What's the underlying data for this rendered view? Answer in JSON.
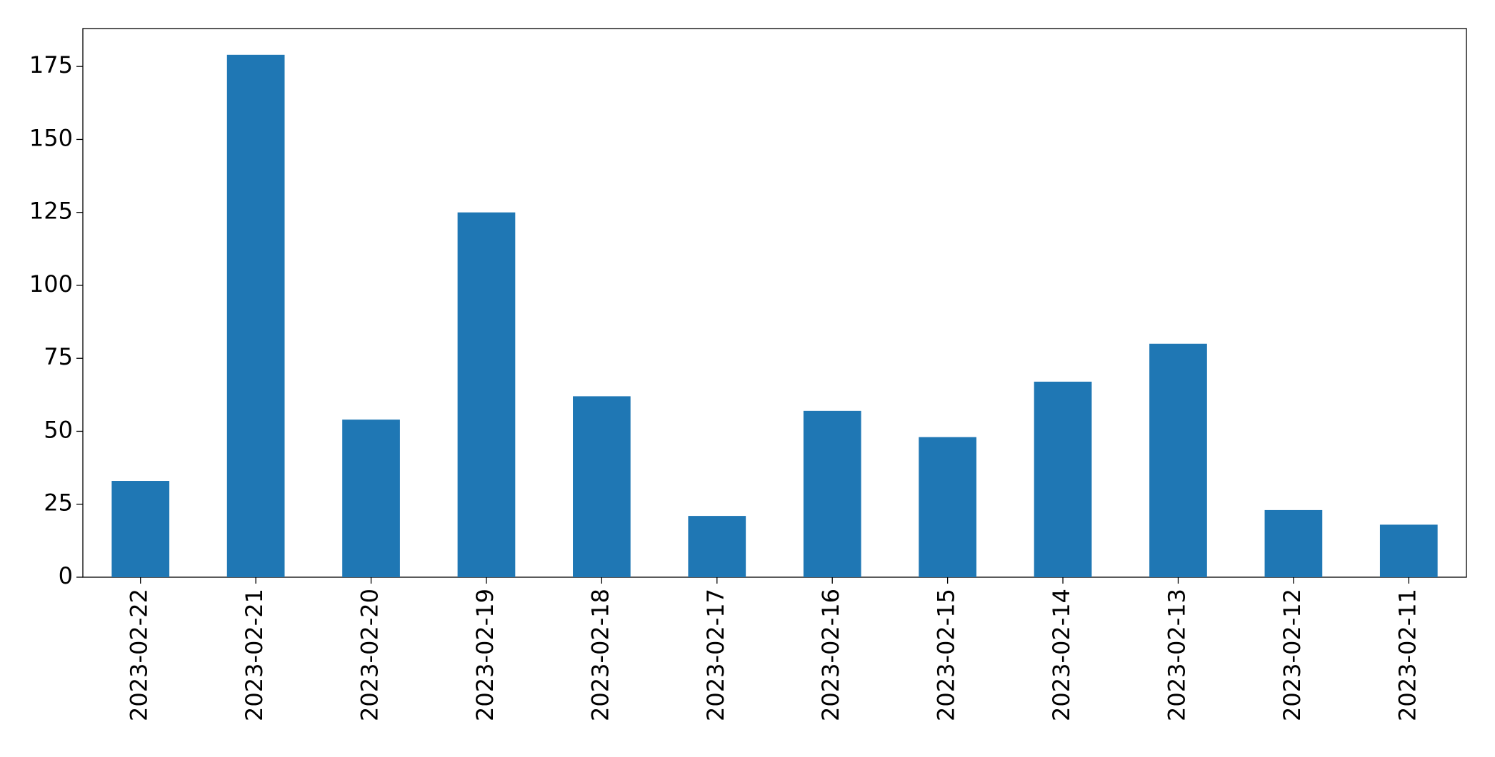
{
  "chart_data": {
    "type": "bar",
    "categories": [
      "2023-02-22",
      "2023-02-21",
      "2023-02-20",
      "2023-02-19",
      "2023-02-18",
      "2023-02-17",
      "2023-02-16",
      "2023-02-15",
      "2023-02-14",
      "2023-02-13",
      "2023-02-12",
      "2023-02-11"
    ],
    "values": [
      33,
      179,
      54,
      125,
      62,
      21,
      57,
      48,
      67,
      80,
      23,
      18
    ],
    "color": "#1f77b4",
    "ylim": [
      0,
      188
    ],
    "yticks": [
      0,
      25,
      50,
      75,
      100,
      125,
      150,
      175
    ],
    "grid": false
  }
}
